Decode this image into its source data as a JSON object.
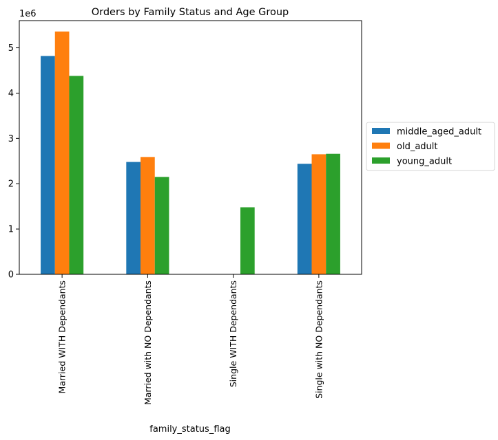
{
  "chart_data": {
    "type": "bar",
    "title": "Orders by Family Status and Age Group",
    "xlabel": "family_status_flag",
    "ylabel": "",
    "offset_label": "1e6",
    "categories": [
      "Married WITH Dependants",
      "Married with NO Dependants",
      "Single WITH Dependants",
      "Single with NO Dependants"
    ],
    "series": [
      {
        "name": "middle_aged_adult",
        "color": "#1f77b4",
        "values": [
          4820000,
          2480000,
          0,
          2440000
        ]
      },
      {
        "name": "old_adult",
        "color": "#ff7f0e",
        "values": [
          5360000,
          2590000,
          0,
          2650000
        ]
      },
      {
        "name": "young_adult",
        "color": "#2ca02c",
        "values": [
          4380000,
          2150000,
          1480000,
          2660000
        ]
      }
    ],
    "ylim": [
      0,
      5600000
    ],
    "yticks": [
      0,
      1000000,
      2000000,
      3000000,
      4000000,
      5000000
    ],
    "ytick_labels": [
      "0",
      "1",
      "2",
      "3",
      "4",
      "5"
    ],
    "legend_position": "center-right-outside",
    "grid": false
  }
}
